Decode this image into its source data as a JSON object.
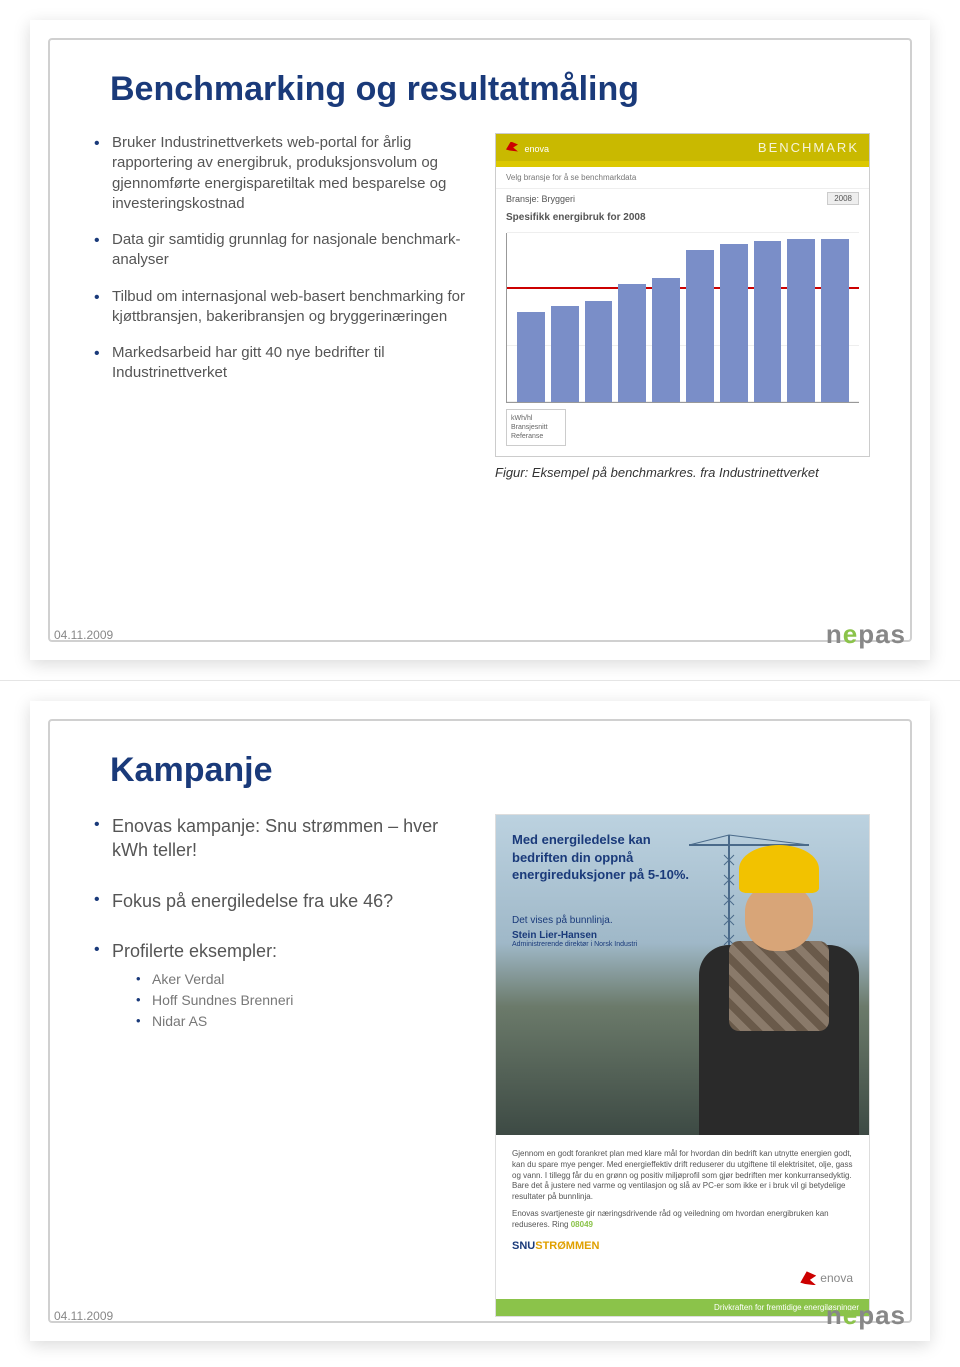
{
  "slide1": {
    "title": "Benchmarking og resultatmåling",
    "bullets": [
      "Bruker Industrinettverkets web-portal for årlig rapportering av energibruk, produksjonsvolum og gjennomførte energisparetiltak med besparelse og investeringskostnad",
      "Data gir samtidig grunnlag for nasjonale benchmark-analyser",
      "Tilbud om internasjonal web-basert benchmarking for kjøttbransjen, bakeribransjen og bryggerinæringen",
      "Markedsarbeid har gitt 40 nye bedrifter til Industrinettverket"
    ],
    "chart": {
      "brand": "enova",
      "header_right": "BENCHMARK",
      "meta_line": "Bransje: Bryggeri",
      "title_row": "Spesifikk energibruk for 2008",
      "y_ticks": [
        0,
        10,
        20,
        30
      ],
      "values": [
        16,
        17,
        18,
        21,
        22,
        27,
        28,
        28.5,
        29,
        29
      ],
      "redline_at": 20,
      "ymax": 30,
      "bar_color": "#7a8ec8",
      "grid_color": "#eeeeee",
      "redline_color": "#cc0000",
      "header_bg": "#c9b900",
      "legend_lines": [
        "kWh/hl",
        "Bransjesnitt",
        "Referanse"
      ]
    },
    "caption": "Figur: Eksempel på benchmarkres. fra Industrinettverket",
    "date": "04.11.2009",
    "logo_text": "nepas"
  },
  "slide2": {
    "title": "Kampanje",
    "bullets": [
      "Enovas kampanje: Snu strømmen – hver kWh teller!",
      "Fokus på energiledelse fra uke 46?",
      "Profilerte eksempler:"
    ],
    "sub_bullets": [
      "Aker Verdal",
      "Hoff Sundnes Brenneri",
      "Nidar AS"
    ],
    "ad": {
      "headline_l1": "Med energiledelse kan",
      "headline_l2": "bedriften din oppnå",
      "headline_l3": "energireduksjoner på 5-10%.",
      "sub": "Det vises på bunnlinja.",
      "name": "Stein Lier-Hansen",
      "role": "Administrerende direktør i Norsk Industri",
      "body1": "Gjennom en godt forankret plan med klare mål for hvordan din bedrift kan utnytte energien godt, kan du spare mye penger. Med energieffektiv drift reduserer du utgiftene til elektrisitet, olje, gass og vann. I tillegg får du en grønn og positiv miljøprofil som gjør bedriften mer konkurransedyktig. Bare det å justere ned varme og ventilasjon og slå av PC-er som ikke er i bruk vil gi betydelige resultater på bunnlinja.",
      "body2": "Enovas svartjeneste gir næringsdrivende råd og veiledning om hvordan energibruken kan reduseres. Ring",
      "phone": "08049",
      "brand": "SNUSTRØMMEN",
      "footer_logo": "enova",
      "green_strip": "Drivkraften for fremtidige energiløsninger"
    },
    "date": "04.11.2009",
    "logo_text": "nepas"
  }
}
